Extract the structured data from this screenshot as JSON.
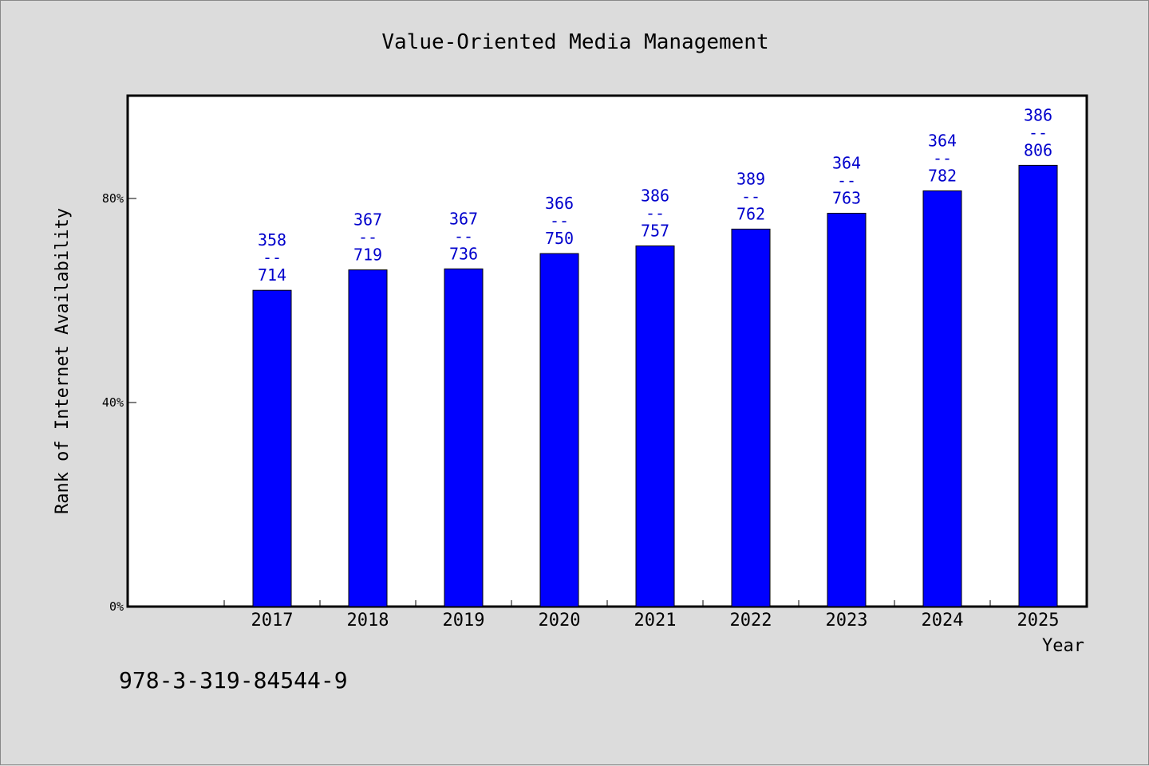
{
  "chart_data": {
    "type": "bar",
    "title": "Value-Oriented Media Management",
    "xlabel": "Year",
    "ylabel": "Rank of Internet Availability",
    "categories": [
      "2017",
      "2018",
      "2019",
      "2020",
      "2021",
      "2022",
      "2023",
      "2024",
      "2025"
    ],
    "values": [
      62,
      66,
      66.2,
      69.2,
      70.7,
      74,
      77.1,
      81.5,
      86.5
    ],
    "value_labels": [
      [
        "358",
        "--",
        "714"
      ],
      [
        "367",
        "--",
        "719"
      ],
      [
        "367",
        "--",
        "736"
      ],
      [
        "366",
        "--",
        "750"
      ],
      [
        "386",
        "--",
        "757"
      ],
      [
        "389",
        "--",
        "762"
      ],
      [
        "364",
        "--",
        "763"
      ],
      [
        "364",
        "--",
        "782"
      ],
      [
        "386",
        "--",
        "806"
      ]
    ],
    "yticks": [
      0,
      40,
      80
    ],
    "ytick_labels": [
      "0%",
      "40%",
      "80%"
    ],
    "ylim": [
      0,
      100
    ],
    "bar_color": "#0000ff",
    "label_color": "#0000cc",
    "grid": false
  },
  "footer": {
    "isbn": "978-3-319-84544-9"
  }
}
